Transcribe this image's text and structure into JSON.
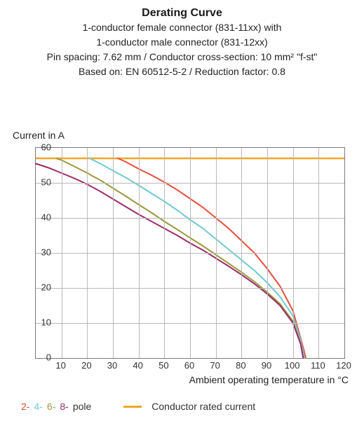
{
  "title": "Derating Curve",
  "subtitle_lines": [
    "1-conductor female connector (831-11xx) with",
    "1-conductor male connector (831-12xx)",
    "Pin spacing: 7.62 mm / Conductor cross-section: 10 mm² \"f-st\"",
    "Based on: EN 60512-5-2 / Reduction factor: 0.8"
  ],
  "axes": {
    "x": {
      "label": "Ambient operating temperature in °C",
      "min": 0,
      "max": 120,
      "tick_step": 10,
      "tick_labels": [
        "",
        "10",
        "20",
        "30",
        "40",
        "50",
        "60",
        "70",
        "80",
        "90",
        "100",
        "110",
        "120"
      ]
    },
    "y": {
      "label": "Current in A",
      "min": 0,
      "max": 60,
      "tick_step": 10,
      "tick_labels": [
        "0",
        "10",
        "20",
        "30",
        "40",
        "50",
        "60"
      ]
    }
  },
  "background_color": "#ffffff",
  "grid_color": "#b9b9b9",
  "border_color": "#7a7a7a",
  "label_fontsize": 14,
  "tick_fontsize": 13,
  "title_fontsize": 16,
  "line_width": 2.0,
  "series": [
    {
      "name": "2-pole",
      "color": "#e84e3c",
      "points": [
        [
          32,
          57
        ],
        [
          35,
          56
        ],
        [
          40,
          54
        ],
        [
          45,
          52.2
        ],
        [
          50,
          50.2
        ],
        [
          55,
          48
        ],
        [
          60,
          45.5
        ],
        [
          65,
          43
        ],
        [
          70,
          40
        ],
        [
          75,
          37
        ],
        [
          80,
          33.5
        ],
        [
          85,
          30
        ],
        [
          90,
          25.5
        ],
        [
          95,
          20.5
        ],
        [
          100,
          13.5
        ],
        [
          104,
          3
        ],
        [
          105,
          0
        ]
      ]
    },
    {
      "name": "4-pole",
      "color": "#6fcad1",
      "points": [
        [
          21,
          57
        ],
        [
          25,
          55.5
        ],
        [
          30,
          53.5
        ],
        [
          35,
          51.5
        ],
        [
          40,
          49.3
        ],
        [
          45,
          47
        ],
        [
          50,
          44.7
        ],
        [
          55,
          42.2
        ],
        [
          60,
          39.5
        ],
        [
          65,
          37
        ],
        [
          70,
          34
        ],
        [
          75,
          31
        ],
        [
          80,
          28
        ],
        [
          85,
          25
        ],
        [
          90,
          21.5
        ],
        [
          95,
          17.5
        ],
        [
          100,
          12
        ],
        [
          103,
          5
        ],
        [
          104.5,
          0
        ]
      ]
    },
    {
      "name": "6-pole",
      "color": "#9a9a3e",
      "points": [
        [
          8,
          57
        ],
        [
          10,
          56.5
        ],
        [
          15,
          54.7
        ],
        [
          20,
          52.8
        ],
        [
          25,
          50.8
        ],
        [
          30,
          48.5
        ],
        [
          35,
          46.2
        ],
        [
          40,
          43.8
        ],
        [
          45,
          41.5
        ],
        [
          50,
          39
        ],
        [
          55,
          36.7
        ],
        [
          60,
          34.3
        ],
        [
          65,
          32
        ],
        [
          70,
          29.5
        ],
        [
          75,
          27
        ],
        [
          80,
          24.5
        ],
        [
          85,
          21.8
        ],
        [
          90,
          18.8
        ],
        [
          95,
          15.5
        ],
        [
          100,
          10.5
        ],
        [
          103,
          4
        ],
        [
          104,
          0
        ]
      ]
    },
    {
      "name": "8-pole",
      "color": "#9e2b68",
      "points": [
        [
          0,
          55.5
        ],
        [
          5,
          54.3
        ],
        [
          10,
          52.8
        ],
        [
          15,
          51.3
        ],
        [
          20,
          49.6
        ],
        [
          25,
          47.6
        ],
        [
          30,
          45.4
        ],
        [
          35,
          43.2
        ],
        [
          40,
          41
        ],
        [
          45,
          39
        ],
        [
          50,
          37
        ],
        [
          55,
          35
        ],
        [
          60,
          32.8
        ],
        [
          65,
          30.8
        ],
        [
          70,
          28.5
        ],
        [
          75,
          26.2
        ],
        [
          80,
          23.8
        ],
        [
          85,
          21.2
        ],
        [
          90,
          18.3
        ],
        [
          95,
          15
        ],
        [
          100,
          10
        ],
        [
          103,
          4
        ],
        [
          104,
          0
        ]
      ]
    }
  ],
  "reference_line": {
    "name": "Conductor rated current",
    "color": "#f5a623",
    "y": 57,
    "width": 2.5
  },
  "legend": {
    "items": [
      {
        "label": "2-",
        "color": "#e84e3c"
      },
      {
        "label": "4-",
        "color": "#6fcad1"
      },
      {
        "label": "6-",
        "color": "#9a9a3e"
      },
      {
        "label": "8-",
        "color": "#9e2b68"
      }
    ],
    "suffix": "pole",
    "ref_label": "Conductor rated current",
    "ref_color": "#f5a623"
  }
}
